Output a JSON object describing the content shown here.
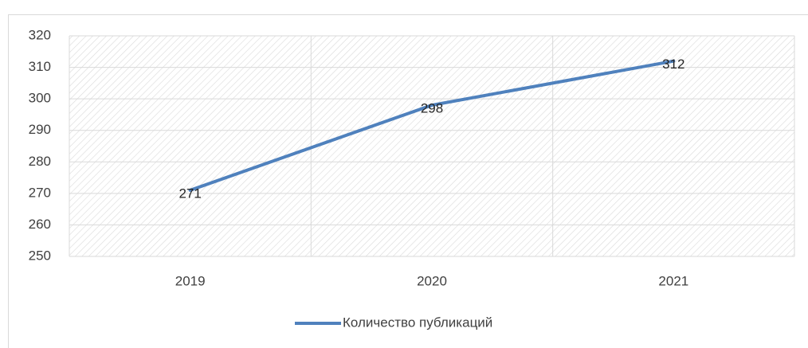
{
  "chart_data": {
    "type": "line",
    "categories": [
      "2019",
      "2020",
      "2021"
    ],
    "series": [
      {
        "name": "Количество публикаций",
        "color": "#4f81bd",
        "values": [
          271,
          298,
          312
        ]
      }
    ],
    "ylim": [
      250,
      320
    ],
    "yticks": [
      250,
      260,
      270,
      280,
      290,
      300,
      310,
      320
    ],
    "grid": true,
    "legend": "bottom",
    "data_labels": true
  }
}
